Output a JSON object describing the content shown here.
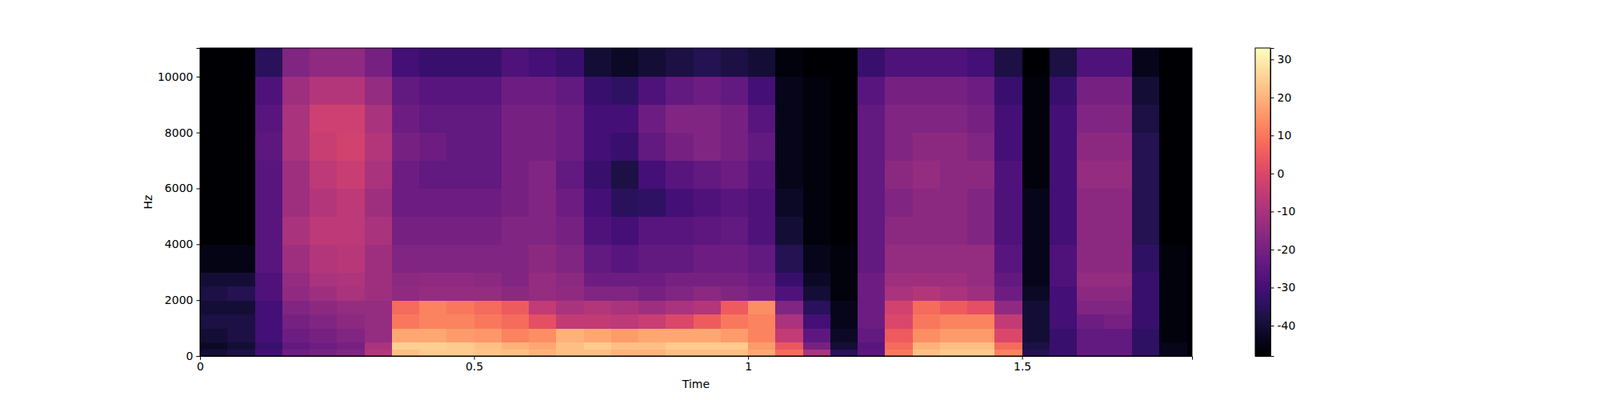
{
  "chart_data": {
    "type": "heatmap",
    "x_label": "Time",
    "y_label": "Hz",
    "color": "magma",
    "xlim": [
      0,
      1.81
    ],
    "ylim": [
      0,
      11025
    ],
    "xticks": [
      0,
      0.5,
      1,
      1.5
    ],
    "yticks": [
      0,
      2000,
      4000,
      6000,
      8000,
      10000
    ],
    "x": [
      0,
      0.05,
      0.1,
      0.15,
      0.2,
      0.25,
      0.3,
      0.35,
      0.4,
      0.45,
      0.5,
      0.55,
      0.6,
      0.65,
      0.7,
      0.75,
      0.8,
      0.85,
      0.9,
      0.95,
      1,
      1.05,
      1.1,
      1.15,
      1.2,
      1.25,
      1.3,
      1.35,
      1.4,
      1.45,
      1.5,
      1.55,
      1.6,
      1.65,
      1.7,
      1.75,
      1.8
    ],
    "y": [
      0,
      250,
      500,
      1000,
      1500,
      2000,
      2500,
      3000,
      4000,
      5000,
      6000,
      7000,
      8000,
      9000,
      10000,
      11025
    ],
    "z": [
      [
        -40,
        -42,
        -40,
        -38,
        -40,
        -38,
        -40,
        -45,
        -48,
        -48,
        -48,
        -48,
        -48,
        -48,
        -48
      ],
      [
        -38,
        -40,
        -38,
        -38,
        -40,
        -36,
        -40,
        -45,
        -48,
        -48,
        -48,
        -48,
        -48,
        -48,
        -48
      ],
      [
        -30,
        -32,
        -30,
        -30,
        -30,
        -28,
        -28,
        -26,
        -26,
        -26,
        -26,
        -25,
        -26,
        -28,
        -35
      ],
      [
        -22,
        -24,
        -22,
        -20,
        -18,
        -15,
        -14,
        -12,
        -10,
        -12,
        -12,
        -10,
        -10,
        -12,
        -18
      ],
      [
        -20,
        -22,
        -20,
        -18,
        -16,
        -12,
        -10,
        -8,
        -6,
        -8,
        -6,
        -4,
        -3,
        -8,
        -15
      ],
      [
        -18,
        -20,
        -18,
        -16,
        -14,
        -10,
        -9,
        -7,
        -6,
        -6,
        -4,
        -2,
        -3,
        -8,
        -15
      ],
      [
        -8,
        -10,
        -14,
        -14,
        -14,
        -12,
        -12,
        -12,
        -10,
        -12,
        -10,
        -8,
        -10,
        -14,
        -20
      ],
      [
        22,
        25,
        18,
        10,
        8,
        -15,
        -16,
        -18,
        -20,
        -22,
        -22,
        -20,
        -22,
        -24,
        -30
      ],
      [
        24,
        25,
        18,
        12,
        12,
        -14,
        -15,
        -18,
        -20,
        -22,
        -24,
        -22,
        -24,
        -26,
        -32
      ],
      [
        24,
        24,
        16,
        12,
        10,
        -14,
        -15,
        -18,
        -20,
        -22,
        -24,
        -24,
        -24,
        -26,
        -32
      ],
      [
        23,
        22,
        15,
        10,
        8,
        -14,
        -16,
        -18,
        -20,
        -22,
        -24,
        -24,
        -24,
        -26,
        -32
      ],
      [
        22,
        20,
        12,
        8,
        5,
        -16,
        -18,
        -18,
        -18,
        -20,
        -20,
        -20,
        -20,
        -22,
        -28
      ],
      [
        20,
        18,
        14,
        2,
        -5,
        -14,
        -14,
        -16,
        -18,
        -18,
        -18,
        -20,
        -20,
        -22,
        -30
      ],
      [
        22,
        22,
        20,
        -5,
        -10,
        -15,
        -16,
        -18,
        -20,
        -22,
        -24,
        -22,
        -22,
        -24,
        -32
      ],
      [
        22,
        24,
        18,
        -5,
        -8,
        -18,
        -22,
        -24,
        -28,
        -30,
        -32,
        -30,
        -30,
        -32,
        -40
      ],
      [
        20,
        22,
        16,
        -6,
        -10,
        -18,
        -22,
        -26,
        -30,
        -35,
        -38,
        -32,
        -30,
        -34,
        -42
      ],
      [
        20,
        22,
        18,
        -4,
        -12,
        -20,
        -22,
        -24,
        -26,
        -34,
        -30,
        -24,
        -22,
        -28,
        -40
      ],
      [
        22,
        24,
        18,
        0,
        -10,
        -18,
        -20,
        -24,
        -26,
        -30,
        -26,
        -20,
        -18,
        -24,
        -38
      ],
      [
        22,
        24,
        18,
        5,
        -8,
        -16,
        -20,
        -22,
        -25,
        -28,
        -24,
        -18,
        -18,
        -22,
        -36
      ],
      [
        22,
        24,
        16,
        10,
        5,
        -18,
        -20,
        -22,
        -24,
        -26,
        -22,
        -20,
        -20,
        -24,
        -38
      ],
      [
        18,
        16,
        12,
        12,
        14,
        -20,
        -22,
        -24,
        -28,
        -28,
        -26,
        -24,
        -26,
        -30,
        -40
      ],
      [
        8,
        4,
        -5,
        -10,
        -18,
        -28,
        -32,
        -36,
        -40,
        -42,
        -44,
        -44,
        -44,
        -44,
        -46
      ],
      [
        -10,
        -20,
        -25,
        -30,
        -35,
        -40,
        -42,
        -44,
        -46,
        -46,
        -46,
        -46,
        -46,
        -46,
        -48
      ],
      [
        -35,
        -40,
        -42,
        -44,
        -44,
        -46,
        -46,
        -46,
        -48,
        -48,
        -48,
        -48,
        -48,
        -48,
        -48
      ],
      [
        -25,
        -26,
        -24,
        -22,
        -22,
        -22,
        -22,
        -24,
        -24,
        -24,
        -24,
        -24,
        -24,
        -26,
        -32
      ],
      [
        10,
        8,
        5,
        0,
        -2,
        -10,
        -12,
        -14,
        -16,
        -18,
        -16,
        -18,
        -18,
        -20,
        -28
      ],
      [
        22,
        20,
        14,
        10,
        8,
        -8,
        -12,
        -14,
        -16,
        -16,
        -14,
        -16,
        -18,
        -20,
        -28
      ],
      [
        24,
        22,
        16,
        12,
        5,
        -10,
        -12,
        -14,
        -16,
        -16,
        -16,
        -16,
        -18,
        -20,
        -28
      ],
      [
        24,
        22,
        16,
        12,
        2,
        -12,
        -14,
        -14,
        -18,
        -18,
        -16,
        -18,
        -20,
        -22,
        -30
      ],
      [
        12,
        8,
        0,
        -5,
        -15,
        -22,
        -24,
        -26,
        -28,
        -28,
        -28,
        -30,
        -30,
        -32,
        -38
      ],
      [
        -36,
        -38,
        -40,
        -40,
        -40,
        -42,
        -44,
        -44,
        -44,
        -44,
        -46,
        -46,
        -46,
        -46,
        -48
      ],
      [
        -32,
        -32,
        -32,
        -30,
        -30,
        -30,
        -28,
        -28,
        -30,
        -30,
        -30,
        -30,
        -30,
        -32,
        -38
      ],
      [
        -24,
        -24,
        -24,
        -22,
        -18,
        -16,
        -14,
        -16,
        -16,
        -16,
        -14,
        -16,
        -18,
        -20,
        -28
      ],
      [
        -24,
        -24,
        -24,
        -20,
        -18,
        -16,
        -14,
        -16,
        -16,
        -16,
        -14,
        -16,
        -18,
        -20,
        -28
      ],
      [
        -34,
        -34,
        -34,
        -32,
        -32,
        -32,
        -32,
        -34,
        -36,
        -36,
        -36,
        -36,
        -38,
        -40,
        -44
      ],
      [
        -44,
        -44,
        -46,
        -46,
        -46,
        -46,
        -46,
        -46,
        -48,
        -48,
        -48,
        -48,
        -48,
        -48,
        -48
      ]
    ],
    "colorbar": {
      "range": [
        -48,
        33
      ],
      "ticks": [
        -40,
        -30,
        -20,
        -10,
        0,
        10,
        20,
        30
      ]
    }
  }
}
